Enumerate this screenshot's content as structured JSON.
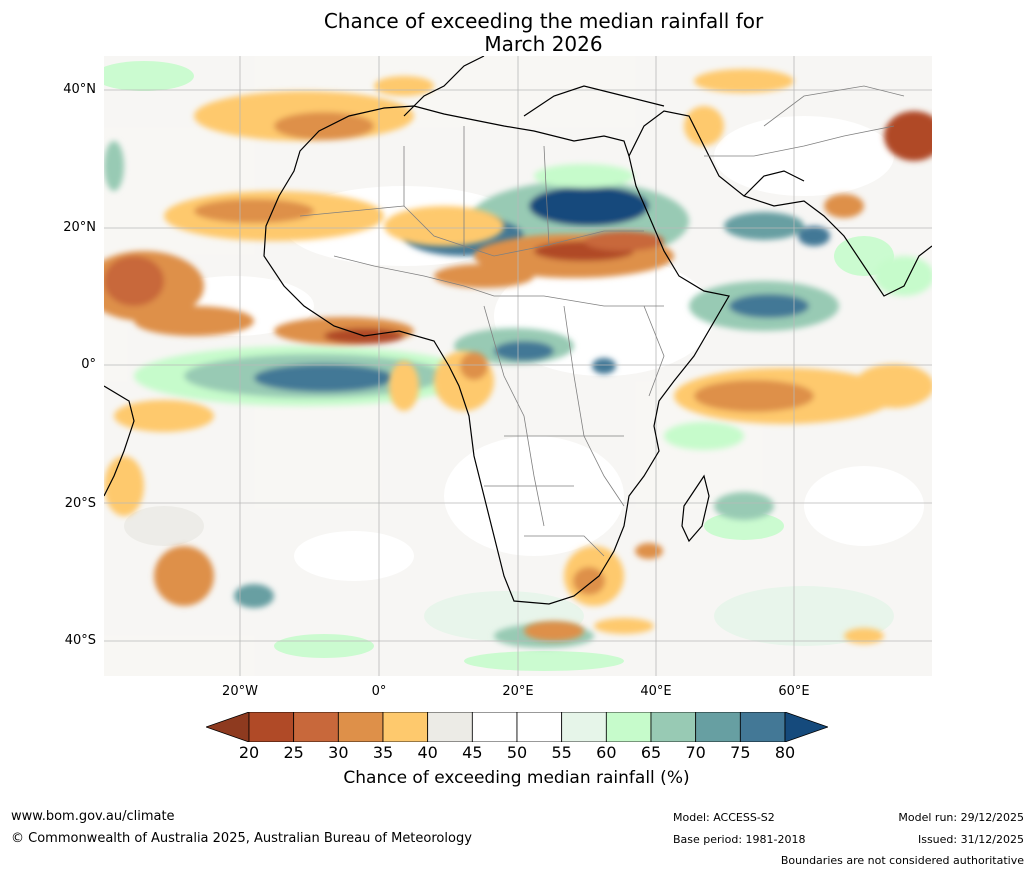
{
  "title": {
    "line1": "Chance of exceeding the median rainfall for",
    "line2": "March 2026"
  },
  "map": {
    "region": "Africa",
    "lat_labels": [
      "40°N",
      "20°N",
      "0°",
      "20°S",
      "40°S"
    ],
    "lon_labels": [
      "20°W",
      "0°",
      "20°E",
      "40°E",
      "60°E"
    ],
    "icons": [
      "coastline-icon",
      "country-boundary-icon",
      "graticule-icon"
    ]
  },
  "legend": {
    "ticks": [
      "20",
      "25",
      "30",
      "35",
      "40",
      "45",
      "50",
      "55",
      "60",
      "65",
      "70",
      "75",
      "80"
    ],
    "colors": [
      "#8e3a1f",
      "#b04a27",
      "#c8683b",
      "#de9049",
      "#fec96d",
      "#ecebe6",
      "#ffffff",
      "#ffffff",
      "#e6f5e9",
      "#c6fbcb",
      "#98cab4",
      "#679fa2",
      "#437896",
      "#154a7c"
    ],
    "label": "Chance of exceeding median rainfall (%)"
  },
  "footer": {
    "website": "www.bom.gov.au/climate",
    "copyright": "© Commonwealth of Australia 2025, Australian Bureau of Meteorology",
    "model": "Model: ACCESS-S2",
    "base_period": "Base period: 1981-2018",
    "model_run": "Model run: 29/12/2025",
    "issued": "Issued: 31/12/2025",
    "disclaimer": "Boundaries are not considered authoritative"
  }
}
